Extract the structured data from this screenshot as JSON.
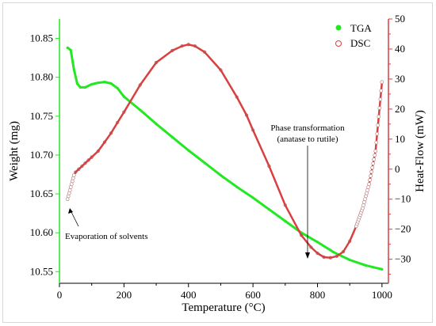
{
  "chart_data": {
    "type": "line",
    "xlabel": "Temperature (°C)",
    "ylabel_left": "Weight (mg)",
    "ylabel_right": "Heat-Flow (mW)",
    "xlim": [
      0,
      1020
    ],
    "ylim_left": [
      10.535,
      10.875
    ],
    "ylim_right": [
      -38,
      50
    ],
    "x_ticks": [
      0,
      200,
      400,
      600,
      800,
      1000
    ],
    "y_left_ticks": [
      10.55,
      10.6,
      10.65,
      10.7,
      10.75,
      10.8,
      10.85
    ],
    "y_right_ticks": [
      -30,
      -20,
      -10,
      0,
      10,
      20,
      30,
      40,
      50
    ],
    "x_tick_labels": [
      "0",
      "200",
      "400",
      "600",
      "800",
      "1000"
    ],
    "y_left_tick_labels": [
      "10.55",
      "10.60",
      "10.65",
      "10.70",
      "10.75",
      "10.80",
      "10.85"
    ],
    "y_right_tick_labels": [
      "−30",
      "−20",
      "−10",
      "0",
      "10",
      "20",
      "30",
      "40",
      "50"
    ],
    "legend_position": "top-right",
    "series": [
      {
        "name": "TGA",
        "axis": "left",
        "color": "#22e822",
        "marker": "filled-circle",
        "x": [
          25,
          35,
          45,
          55,
          65,
          80,
          100,
          120,
          140,
          160,
          180,
          200,
          250,
          300,
          350,
          400,
          450,
          500,
          550,
          600,
          650,
          700,
          750,
          800,
          850,
          900,
          950,
          1000
        ],
        "y": [
          10.838,
          10.835,
          10.81,
          10.792,
          10.787,
          10.787,
          10.791,
          10.793,
          10.794,
          10.792,
          10.786,
          10.775,
          10.758,
          10.74,
          10.723,
          10.706,
          10.69,
          10.674,
          10.659,
          10.645,
          10.63,
          10.615,
          10.6,
          10.588,
          10.575,
          10.565,
          10.558,
          10.553
        ]
      },
      {
        "name": "DSC",
        "axis": "right",
        "color": "#d94040",
        "marker": "open-circle",
        "x": [
          25,
          30,
          35,
          40,
          45,
          50,
          60,
          70,
          80,
          90,
          100,
          120,
          140,
          160,
          180,
          200,
          250,
          300,
          350,
          380,
          400,
          420,
          450,
          500,
          550,
          580,
          600,
          650,
          700,
          750,
          780,
          800,
          820,
          840,
          860,
          880,
          900,
          920,
          940,
          960,
          980,
          1000
        ],
        "y": [
          -10,
          -8,
          -6,
          -4,
          -2,
          -1,
          0,
          1,
          2,
          3,
          4,
          6,
          9,
          12,
          15.5,
          19,
          28,
          35.5,
          39.5,
          41,
          41.5,
          41,
          39,
          33,
          24,
          18,
          13,
          1,
          -12,
          -22,
          -26,
          -28,
          -29.3,
          -29.5,
          -29,
          -27.5,
          -24,
          -19,
          -13,
          -5,
          6,
          29
        ]
      }
    ],
    "annotations": [
      {
        "line1": "Evaporation of solvents",
        "line2": ""
      },
      {
        "line1": "Phase transformation",
        "line2": "(anatase to rutile)"
      }
    ],
    "colors": {
      "left_axis": "#22e822",
      "right_axis": "#d94040",
      "axis_black": "#000000"
    }
  }
}
